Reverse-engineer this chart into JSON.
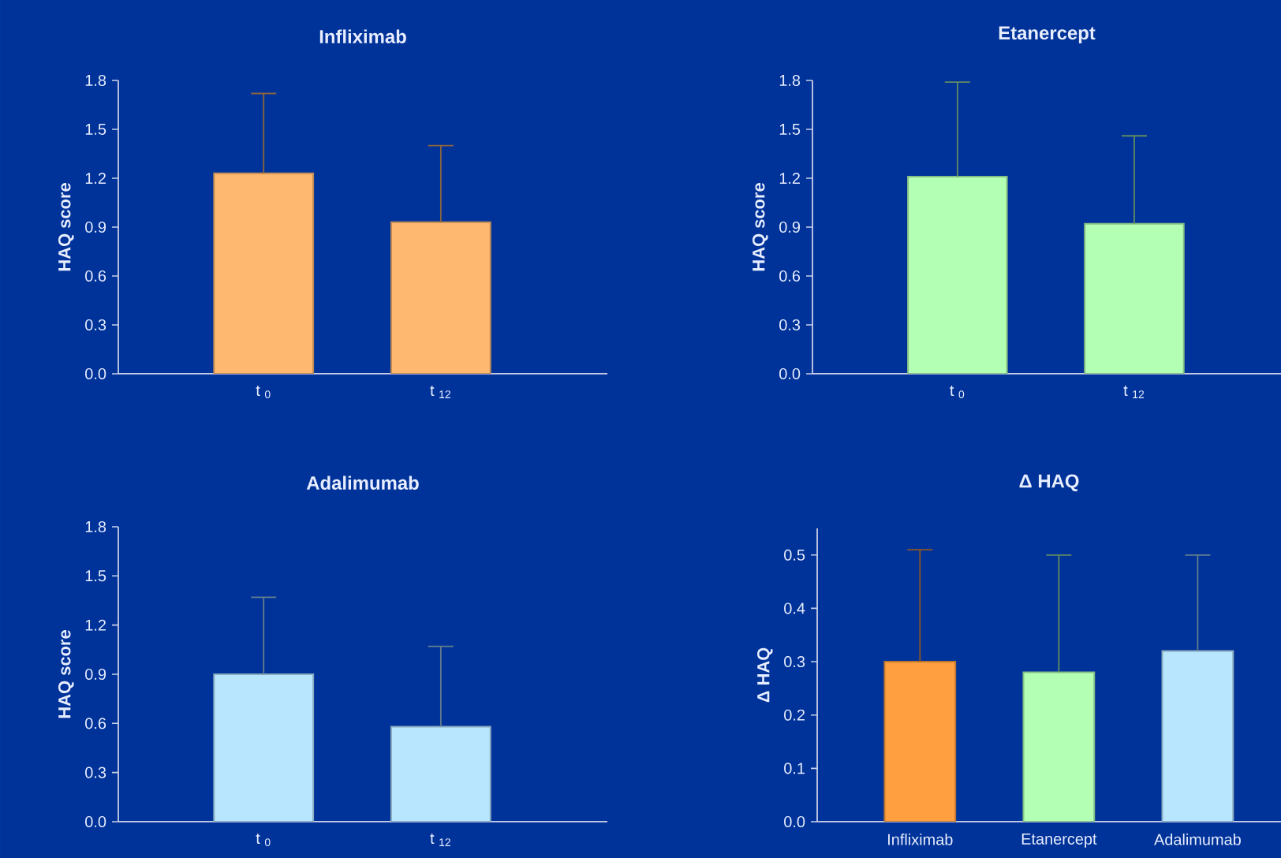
{
  "chart_data": [
    {
      "type": "bar",
      "title": "Infliximab",
      "ylabel": "HAQ score",
      "categories": [
        "t $_{0}$",
        "t $_{12}$"
      ],
      "values": [
        1.23,
        0.93
      ],
      "errors": [
        [
          1.23,
          1.72
        ],
        [
          0.93,
          1.4
        ]
      ],
      "color": "#ffb870",
      "ylim": [
        0,
        1.8
      ],
      "yticks": [
        {
          "value": 0,
          "label": "0.0"
        },
        {
          "value": 0.3,
          "label": "0.3"
        },
        {
          "value": 0.6,
          "label": "0.6"
        },
        {
          "value": 0.9,
          "label": "0.9"
        },
        {
          "value": 1.2,
          "label": "1.2"
        },
        {
          "value": 1.5,
          "label": "1.5"
        },
        {
          "value": 1.8,
          "label": "1.8"
        }
      ]
    },
    {
      "type": "bar",
      "title": "Etanercept",
      "ylabel": "HAQ score",
      "categories": [
        "t $_{0}$",
        "t $_{12}$"
      ],
      "values": [
        1.21,
        0.92
      ],
      "errors": [
        [
          1.21,
          1.79
        ],
        [
          0.92,
          1.46
        ]
      ],
      "color": "#b3ffb3",
      "ylim": [
        0,
        1.8
      ],
      "yticks": [
        {
          "value": 0,
          "label": "0.0"
        },
        {
          "value": 0.3,
          "label": "0.3"
        },
        {
          "value": 0.6,
          "label": "0.6"
        },
        {
          "value": 0.9,
          "label": "0.9"
        },
        {
          "value": 1.2,
          "label": "1.2"
        },
        {
          "value": 1.5,
          "label": "1.5"
        },
        {
          "value": 1.8,
          "label": "1.8"
        }
      ]
    },
    {
      "type": "bar",
      "title": "Adalimumab",
      "ylabel": "HAQ score",
      "categories": [
        "t $_{0}$",
        "t $_{12}$"
      ],
      "values": [
        0.9,
        0.58
      ],
      "errors": [
        [
          0.9,
          1.37
        ],
        [
          0.58,
          1.07
        ]
      ],
      "color": "#b8e6ff",
      "ylim": [
        0,
        1.8
      ],
      "yticks": [
        {
          "value": 0,
          "label": "0.0"
        },
        {
          "value": 0.3,
          "label": "0.3"
        },
        {
          "value": 0.6,
          "label": "0.6"
        },
        {
          "value": 0.9,
          "label": "0.9"
        },
        {
          "value": 1.2,
          "label": "1.2"
        },
        {
          "value": 1.5,
          "label": "1.5"
        },
        {
          "value": 1.8,
          "label": "1.8"
        }
      ]
    },
    {
      "type": "bar",
      "title": "Δ HAQ",
      "ylabel": "Δ HAQ",
      "categories": [
        "Infliximab",
        "Etanercept",
        "Adalimumab"
      ],
      "values": [
        0.3,
        0.28,
        0.32
      ],
      "errors": [
        [
          0.3,
          0.51
        ],
        [
          0.28,
          0.5
        ],
        [
          0.32,
          0.5
        ]
      ],
      "colors": [
        "#ff9f40",
        "#b3ffb3",
        "#b8e6ff"
      ],
      "ylim": [
        0,
        0.55
      ],
      "yticks": [
        {
          "value": 0,
          "label": "0.0"
        },
        {
          "value": 0.1,
          "label": "0.1"
        },
        {
          "value": 0.2,
          "label": "0.2"
        },
        {
          "value": 0.3,
          "label": "0.3"
        },
        {
          "value": 0.4,
          "label": "0.4"
        },
        {
          "value": 0.5,
          "label": "0.5"
        }
      ]
    }
  ]
}
